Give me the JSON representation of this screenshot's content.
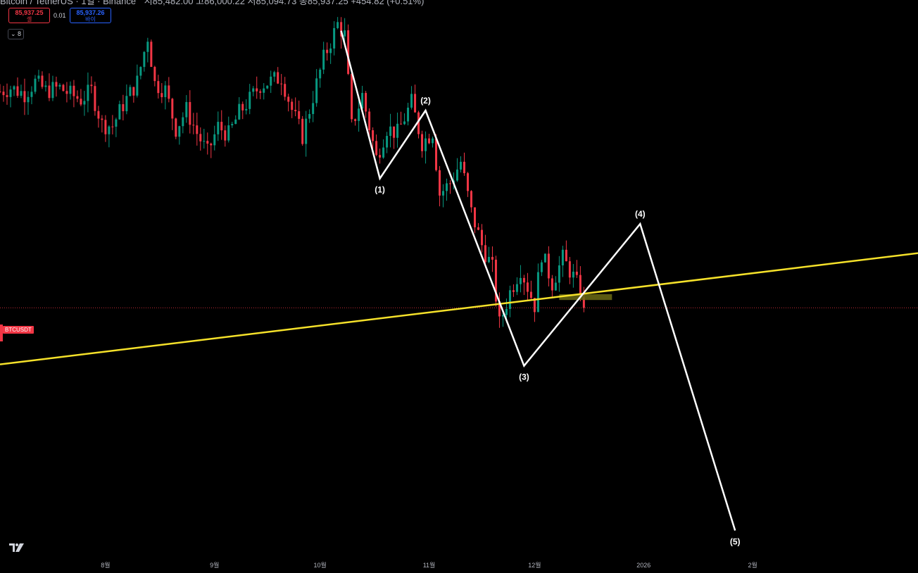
{
  "header": {
    "symbol_title": "Bitcoin / TetherUS · 1일 · Binance",
    "ohlc_text": "시85,482.00 고86,000.22 저85,094.73 종85,937.25 +454.82 (+0.51%)"
  },
  "trade_panel": {
    "sell_price": "85,937.25",
    "sell_label": "셀",
    "spread": "0.01",
    "buy_price": "85,937.26",
    "buy_label": "바이",
    "collapse_count": "8"
  },
  "price_tag": "BTCUSDT",
  "colors": {
    "background": "#000000",
    "up_candle": "#089981",
    "down_candle": "#f23645",
    "wave_line": "#ffffff",
    "trend_line": "#f5e12a",
    "current_price_line": "#f23645",
    "zone_box": "#6b6a14"
  },
  "chart_data": {
    "type": "candlestick",
    "symbol": "BTCUSDT",
    "exchange": "Binance",
    "interval": "1일",
    "last_price": 85937.25,
    "y_range": [
      52000,
      128000
    ],
    "x_tick_labels": [
      "8월",
      "9월",
      "10월",
      "11월",
      "12월",
      "2026",
      "2월"
    ],
    "x_ticks": [
      {
        "date": "2025-08-01",
        "label": "8월"
      },
      {
        "date": "2025-09-01",
        "label": "9월"
      },
      {
        "date": "2025-10-01",
        "label": "10월"
      },
      {
        "date": "2025-11-01",
        "label": "11월"
      },
      {
        "date": "2025-12-01",
        "label": "12월"
      },
      {
        "date": "2026-01-01",
        "label": "2026"
      },
      {
        "date": "2026-02-01",
        "label": "2월"
      }
    ],
    "x_range": [
      "2025-07-02",
      "2026-03-20"
    ],
    "close_path": [
      [
        "2025-07-02",
        115500
      ],
      [
        "2025-07-05",
        116000
      ],
      [
        "2025-07-09",
        115200
      ],
      [
        "2025-07-12",
        116800
      ],
      [
        "2025-07-15",
        115600
      ],
      [
        "2025-07-19",
        116000
      ],
      [
        "2025-07-22",
        115100
      ],
      [
        "2025-07-25",
        114400
      ],
      [
        "2025-07-28",
        115600
      ],
      [
        "2025-07-31",
        111000
      ],
      [
        "2025-08-03",
        110800
      ],
      [
        "2025-08-06",
        113700
      ],
      [
        "2025-08-10",
        116800
      ],
      [
        "2025-08-13",
        123000
      ],
      [
        "2025-08-15",
        116600
      ],
      [
        "2025-08-18",
        115700
      ],
      [
        "2025-08-21",
        110400
      ],
      [
        "2025-08-24",
        113000
      ],
      [
        "2025-08-27",
        109800
      ],
      [
        "2025-08-30",
        107100
      ],
      [
        "2025-09-02",
        110700
      ],
      [
        "2025-09-05",
        109600
      ],
      [
        "2025-09-08",
        112600
      ],
      [
        "2025-09-11",
        114400
      ],
      [
        "2025-09-14",
        116400
      ],
      [
        "2025-09-17",
        116900
      ],
      [
        "2025-09-20",
        117500
      ],
      [
        "2025-09-23",
        113000
      ],
      [
        "2025-09-26",
        109400
      ],
      [
        "2025-09-29",
        114800
      ],
      [
        "2025-10-02",
        120000
      ],
      [
        "2025-10-06",
        124700
      ],
      [
        "2025-10-08",
        123200
      ],
      [
        "2025-10-10",
        110700
      ],
      [
        "2025-10-13",
        115000
      ],
      [
        "2025-10-17",
        106400
      ],
      [
        "2025-10-20",
        110500
      ],
      [
        "2025-10-23",
        109800
      ],
      [
        "2025-10-27",
        114000
      ],
      [
        "2025-10-30",
        108500
      ],
      [
        "2025-11-02",
        110000
      ],
      [
        "2025-11-04",
        101500
      ],
      [
        "2025-11-07",
        103000
      ],
      [
        "2025-11-10",
        105900
      ],
      [
        "2025-11-13",
        99000
      ],
      [
        "2025-11-16",
        94500
      ],
      [
        "2025-11-19",
        91300
      ],
      [
        "2025-11-21",
        83700
      ],
      [
        "2025-11-24",
        88100
      ],
      [
        "2025-11-27",
        91300
      ],
      [
        "2025-12-01",
        86300
      ],
      [
        "2025-12-03",
        93400
      ],
      [
        "2025-12-06",
        89300
      ],
      [
        "2025-12-09",
        92700
      ],
      [
        "2025-12-12",
        90200
      ],
      [
        "2025-12-14",
        88200
      ],
      [
        "2025-12-15",
        85937.25
      ]
    ],
    "elliott_wave": [
      {
        "label": "",
        "date": "2025-10-07",
        "price": 123800
      },
      {
        "label": "(1)",
        "date": "2025-10-18",
        "price": 103600
      },
      {
        "label": "(2)",
        "date": "2025-10-31",
        "price": 112900
      },
      {
        "label": "(3)",
        "date": "2025-11-28",
        "price": 78000
      },
      {
        "label": "(4)",
        "date": "2025-12-31",
        "price": 97400
      },
      {
        "label": "(5)",
        "date": "2026-01-27",
        "price": 55500
      }
    ],
    "trend_line": [
      {
        "date": "2025-07-02",
        "price": 78200
      },
      {
        "date": "2026-03-20",
        "price": 93400
      }
    ],
    "zone": {
      "date_start": "2025-12-08",
      "date_end": "2025-12-23",
      "price_top": 87800,
      "price_bottom": 87000
    },
    "grid": false,
    "legend": "none"
  }
}
